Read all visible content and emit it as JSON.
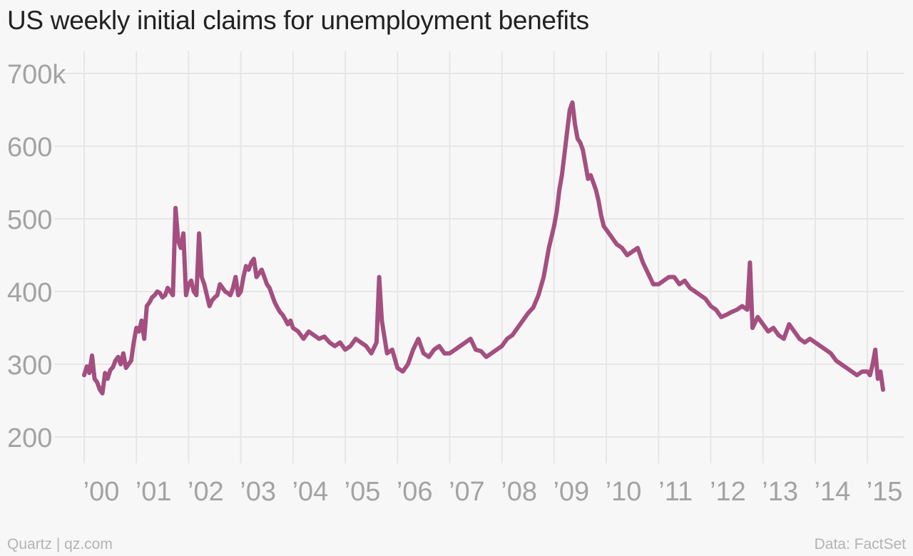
{
  "title": "US weekly initial claims for unemployment benefits",
  "footer": {
    "source_left": "Quartz | qz.com",
    "source_right": "Data: FactSet"
  },
  "colors": {
    "line": "#a44f80",
    "grid": "#e6e6e6",
    "tick_text": "#a3a3a3",
    "background": "#f7f7f7"
  },
  "chart_data": {
    "type": "line",
    "title": "US weekly initial claims for unemployment benefits",
    "xlabel": "",
    "ylabel": "",
    "xlim": [
      2000.0,
      2015.6
    ],
    "ylim": [
      200,
      700
    ],
    "y_ticks": [
      200,
      300,
      400,
      500,
      600,
      700
    ],
    "y_tick_labels": [
      "200",
      "300",
      "400",
      "500",
      "600",
      "700k"
    ],
    "x_ticks": [
      2000,
      2001,
      2002,
      2003,
      2004,
      2005,
      2006,
      2007,
      2008,
      2009,
      2010,
      2011,
      2012,
      2013,
      2014,
      2015
    ],
    "x_tick_labels": [
      "’00",
      "’01",
      "’02",
      "’03",
      "’04",
      "’05",
      "’06",
      "’07",
      "’08",
      "’09",
      "’10",
      "’11",
      "’12",
      "’13",
      "’14",
      "’15"
    ],
    "grid": true,
    "legend": "none",
    "series": [
      {
        "x": [
          2000.0,
          2000.05,
          2000.1,
          2000.15,
          2000.2,
          2000.25,
          2000.3,
          2000.35,
          2000.4,
          2000.45,
          2000.5,
          2000.55,
          2000.6,
          2000.65,
          2000.7,
          2000.75,
          2000.8,
          2000.85,
          2000.9,
          2000.95,
          2001.0,
          2001.05,
          2001.1,
          2001.15,
          2001.2,
          2001.25,
          2001.3,
          2001.35,
          2001.4,
          2001.45,
          2001.5,
          2001.55,
          2001.6,
          2001.65,
          2001.7,
          2001.75,
          2001.8,
          2001.85,
          2001.9,
          2001.95,
          2002.0,
          2002.05,
          2002.1,
          2002.15,
          2002.2,
          2002.25,
          2002.3,
          2002.35,
          2002.4,
          2002.45,
          2002.5,
          2002.55,
          2002.6,
          2002.65,
          2002.7,
          2002.75,
          2002.8,
          2002.85,
          2002.9,
          2002.95,
          2003.0,
          2003.05,
          2003.1,
          2003.15,
          2003.2,
          2003.25,
          2003.3,
          2003.35,
          2003.4,
          2003.45,
          2003.5,
          2003.55,
          2003.6,
          2003.65,
          2003.7,
          2003.75,
          2003.8,
          2003.85,
          2003.9,
          2003.95,
          2004.0,
          2004.1,
          2004.2,
          2004.3,
          2004.4,
          2004.5,
          2004.6,
          2004.7,
          2004.8,
          2004.9,
          2005.0,
          2005.1,
          2005.2,
          2005.3,
          2005.4,
          2005.5,
          2005.6,
          2005.65,
          2005.7,
          2005.8,
          2005.9,
          2006.0,
          2006.1,
          2006.2,
          2006.3,
          2006.4,
          2006.5,
          2006.6,
          2006.7,
          2006.8,
          2006.9,
          2007.0,
          2007.1,
          2007.2,
          2007.3,
          2007.4,
          2007.5,
          2007.6,
          2007.7,
          2007.8,
          2007.9,
          2008.0,
          2008.1,
          2008.2,
          2008.3,
          2008.4,
          2008.5,
          2008.6,
          2008.7,
          2008.8,
          2008.9,
          2009.0,
          2009.05,
          2009.1,
          2009.15,
          2009.2,
          2009.25,
          2009.3,
          2009.35,
          2009.4,
          2009.45,
          2009.5,
          2009.55,
          2009.6,
          2009.65,
          2009.7,
          2009.75,
          2009.8,
          2009.85,
          2009.9,
          2009.95,
          2010.0,
          2010.1,
          2010.2,
          2010.3,
          2010.4,
          2010.5,
          2010.6,
          2010.7,
          2010.8,
          2010.9,
          2011.0,
          2011.1,
          2011.2,
          2011.3,
          2011.4,
          2011.5,
          2011.6,
          2011.7,
          2011.8,
          2011.9,
          2012.0,
          2012.1,
          2012.2,
          2012.3,
          2012.4,
          2012.5,
          2012.6,
          2012.7,
          2012.75,
          2012.8,
          2012.9,
          2013.0,
          2013.1,
          2013.2,
          2013.3,
          2013.4,
          2013.5,
          2013.6,
          2013.7,
          2013.8,
          2013.9,
          2014.0,
          2014.1,
          2014.2,
          2014.3,
          2014.4,
          2014.5,
          2014.6,
          2014.7,
          2014.8,
          2014.9,
          2015.0,
          2015.05,
          2015.1,
          2015.15,
          2015.2,
          2015.25,
          2015.3
        ],
        "values": [
          285,
          297,
          288,
          312,
          280,
          275,
          265,
          260,
          288,
          280,
          292,
          296,
          305,
          310,
          300,
          315,
          295,
          300,
          305,
          330,
          350,
          345,
          360,
          335,
          380,
          385,
          392,
          395,
          400,
          398,
          392,
          395,
          405,
          400,
          395,
          515,
          470,
          460,
          480,
          395,
          410,
          415,
          400,
          395,
          480,
          420,
          410,
          395,
          380,
          388,
          392,
          395,
          410,
          405,
          400,
          398,
          395,
          405,
          420,
          395,
          400,
          420,
          435,
          430,
          440,
          445,
          420,
          425,
          430,
          420,
          410,
          405,
          395,
          385,
          378,
          372,
          368,
          362,
          355,
          360,
          350,
          345,
          335,
          345,
          340,
          335,
          338,
          330,
          325,
          330,
          320,
          325,
          335,
          330,
          325,
          315,
          330,
          420,
          360,
          315,
          320,
          295,
          290,
          300,
          320,
          335,
          315,
          310,
          320,
          325,
          315,
          315,
          320,
          325,
          330,
          335,
          320,
          318,
          310,
          315,
          320,
          325,
          335,
          340,
          350,
          360,
          370,
          378,
          395,
          420,
          460,
          490,
          510,
          540,
          560,
          590,
          620,
          650,
          660,
          630,
          610,
          605,
          595,
          575,
          555,
          560,
          550,
          540,
          525,
          505,
          490,
          485,
          475,
          465,
          460,
          450,
          455,
          460,
          440,
          425,
          410,
          410,
          415,
          420,
          420,
          410,
          415,
          405,
          400,
          395,
          390,
          380,
          375,
          365,
          368,
          372,
          375,
          380,
          375,
          440,
          350,
          365,
          355,
          345,
          350,
          340,
          335,
          355,
          345,
          335,
          330,
          335,
          330,
          325,
          320,
          315,
          305,
          300,
          295,
          290,
          285,
          290,
          290,
          285,
          300,
          320,
          280,
          290,
          265
        ]
      }
    ]
  }
}
